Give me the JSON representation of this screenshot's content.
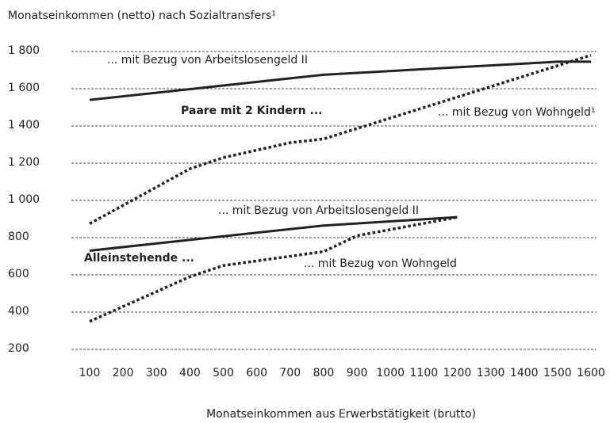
{
  "chart_data": {
    "type": "line",
    "title": "Monatseinkommen (netto) nach Sozialtransfers¹",
    "x_label": "Monatseinkommen aus Erwerbstätigkeit (brutto)",
    "xlim": [
      100,
      1600
    ],
    "xticks": [
      100,
      200,
      300,
      400,
      500,
      600,
      700,
      800,
      900,
      1000,
      1100,
      1200,
      1300,
      1400,
      1500,
      1600
    ],
    "ylim": [
      200,
      1800
    ],
    "yticks": [
      200,
      400,
      600,
      800,
      {
        "value": 1000,
        "label": "1 000"
      },
      {
        "value": 1200,
        "label": "1 200"
      },
      {
        "value": 1400,
        "label": "1 400"
      },
      {
        "value": 1600,
        "label": "1 600"
      },
      {
        "value": 1800,
        "label": "1 800"
      }
    ],
    "grid": true,
    "series": [
      {
        "color": "#222222",
        "style": "solid",
        "x": [
          100,
          800,
          1500,
          1600
        ],
        "values": [
          1540,
          1675,
          1745,
          1745
        ]
      },
      {
        "color": "#222222",
        "style": "dotted",
        "x": [
          100,
          400,
          500,
          600,
          700,
          800,
          1600
        ],
        "values": [
          875,
          1170,
          1230,
          1270,
          1310,
          1330,
          1780
        ]
      },
      {
        "color": "#222222",
        "style": "solid",
        "x": [
          100,
          800,
          1200
        ],
        "values": [
          730,
          865,
          910
        ]
      },
      {
        "color": "#222222",
        "style": "dotted",
        "x": [
          100,
          400,
          500,
          800,
          900,
          1200
        ],
        "values": [
          350,
          590,
          650,
          725,
          810,
          910
        ]
      }
    ],
    "annotations": [
      {
        "text": "... mit Bezug von Arbeitslosengeld II",
        "bold": false
      },
      {
        "text": "Paare mit 2 Kindern ...",
        "bold": true
      },
      {
        "text": "... mit Bezug von Wohngeld¹",
        "bold": false
      },
      {
        "text": "... mit Bezug von Arbeitslosengeld II",
        "bold": false
      },
      {
        "text": "Alleinstehende ...",
        "bold": true
      },
      {
        "text": "... mit Bezug von Wohngeld",
        "bold": false
      }
    ]
  }
}
